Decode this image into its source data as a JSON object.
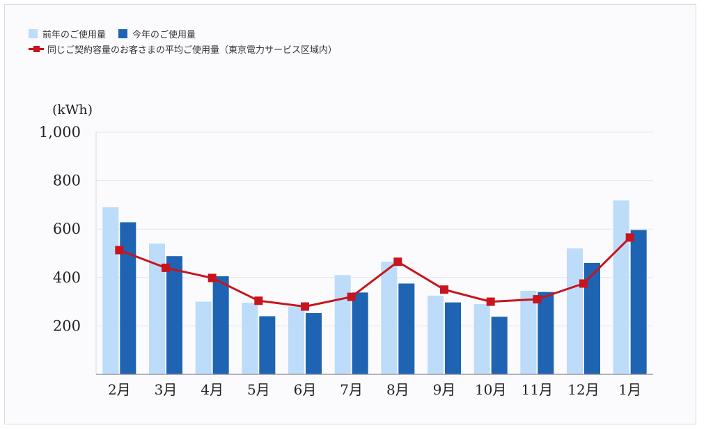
{
  "legend": {
    "prev_label": "前年のご使用量",
    "curr_label": "今年のご使用量",
    "avg_label": "同じご契約容量のお客さまの平均ご使用量（東京電力サービス区域内）"
  },
  "colors": {
    "prev": "#bcdcfa",
    "curr": "#1f63b3",
    "avg": "#c8141e",
    "grid": "#e4e4ea",
    "axis": "#9a9aa6"
  },
  "chart_data": {
    "type": "bar",
    "unit_label": "(kWh)",
    "categories": [
      "2月",
      "3月",
      "4月",
      "5月",
      "6月",
      "7月",
      "8月",
      "9月",
      "10月",
      "11月",
      "12月",
      "1月"
    ],
    "series": [
      {
        "name": "前年のご使用量",
        "kind": "bar",
        "values": [
          690,
          540,
          300,
          295,
          280,
          410,
          465,
          325,
          290,
          345,
          520,
          718
        ]
      },
      {
        "name": "今年のご使用量",
        "kind": "bar",
        "values": [
          628,
          488,
          405,
          240,
          253,
          338,
          375,
          297,
          238,
          340,
          460,
          596
        ]
      },
      {
        "name": "同じご契約容量のお客さまの平均ご使用量（東京電力サービス区域内）",
        "kind": "line",
        "values": [
          513,
          440,
          398,
          304,
          280,
          320,
          465,
          350,
          300,
          310,
          375,
          565
        ]
      }
    ],
    "y_ticks": [
      "200",
      "400",
      "600",
      "800",
      "1,000"
    ],
    "ylim": [
      0,
      1000
    ],
    "grid": true,
    "legend_position": "top-left"
  }
}
